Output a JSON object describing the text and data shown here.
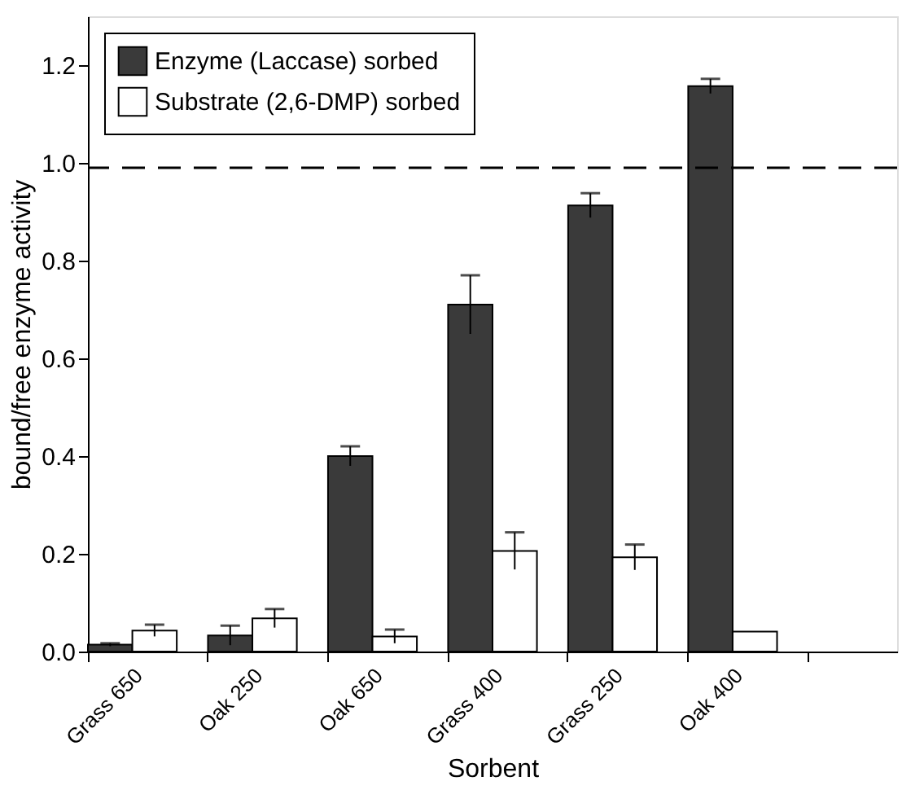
{
  "chart_data": {
    "type": "bar",
    "xlabel": "Sorbent",
    "ylabel": "bound/free enzyme activity",
    "categories": [
      "Grass 650",
      "Oak 250",
      "Oak 650",
      "Grass 400",
      "Grass 250",
      "Oak 400",
      null
    ],
    "series": [
      {
        "name": "Enzyme (Laccase) sorbed",
        "color": "#3a3a3a",
        "values": [
          0.014,
          0.033,
          0.4,
          0.71,
          0.913,
          1.157,
          null
        ],
        "errors": [
          0.003,
          0.02,
          0.02,
          0.06,
          0.025,
          0.015,
          null
        ]
      },
      {
        "name": "Substrate (2,6-DMP) sorbed",
        "color": "#ffffff",
        "values": [
          0.043,
          0.068,
          0.031,
          0.206,
          0.193,
          0.041,
          null
        ],
        "errors": [
          0.012,
          0.019,
          0.014,
          0.038,
          0.026,
          null,
          null
        ]
      }
    ],
    "ylim": [
      0,
      1.3
    ],
    "yticks": [
      {
        "value": 0,
        "label": "0.0"
      },
      0.2,
      0.4,
      0.6,
      0.8,
      {
        "value": 1,
        "label": "1.0"
      },
      1.2
    ],
    "ref_lines": [
      {
        "axis": "y",
        "value": 0.99,
        "label": null,
        "line_style": "dashed"
      }
    ],
    "legend": "top left",
    "grid": false
  }
}
